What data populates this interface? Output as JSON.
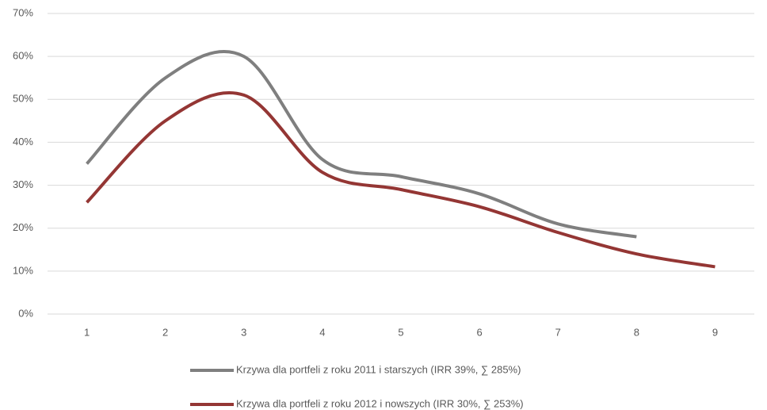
{
  "chart_data": {
    "type": "line",
    "categories": [
      "1",
      "2",
      "3",
      "4",
      "5",
      "6",
      "7",
      "8",
      "9"
    ],
    "series": [
      {
        "name": "Krzywa dla portfeli z roku 2011 i starszych (IRR 39%, ∑ 285%)",
        "color": "#7f7f7f",
        "values": [
          35,
          55,
          60,
          36,
          32,
          28,
          21,
          18,
          null
        ]
      },
      {
        "name": "Krzywa dla portfeli z roku 2012 i nowszych (IRR 30%, ∑ 253%)",
        "color": "#943634",
        "values": [
          26,
          45,
          51,
          33,
          29,
          25,
          19,
          14,
          11
        ]
      }
    ],
    "ylim": [
      0,
      70
    ],
    "yticks": [
      {
        "value": 0,
        "label": "0%"
      },
      {
        "value": 10,
        "label": "10%"
      },
      {
        "value": 20,
        "label": "20%"
      },
      {
        "value": 30,
        "label": "30%"
      },
      {
        "value": 40,
        "label": "40%"
      },
      {
        "value": 50,
        "label": "50%"
      },
      {
        "value": 60,
        "label": "60%"
      },
      {
        "value": 70,
        "label": "70%"
      }
    ],
    "grid": true,
    "smooth": true
  }
}
